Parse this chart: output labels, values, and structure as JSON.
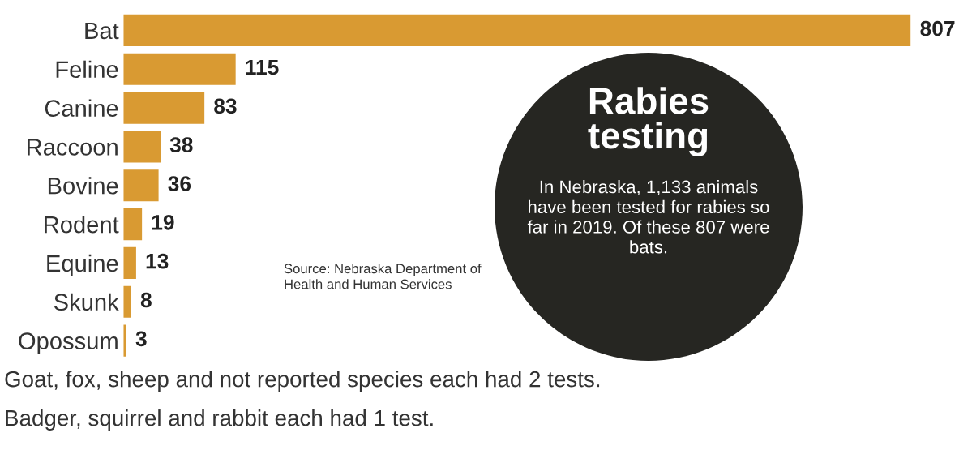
{
  "chart_data": {
    "type": "bar",
    "orientation": "horizontal",
    "title": "Rabies testing",
    "subtitle": "In Nebraska, 1,133 animals have been tested for rabies so far in 2019. Of these 807 were bats.",
    "categories": [
      "Bat",
      "Feline",
      "Canine",
      "Raccoon",
      "Bovine",
      "Rodent",
      "Equine",
      "Skunk",
      "Opossum"
    ],
    "values": [
      807,
      115,
      83,
      38,
      36,
      19,
      13,
      8,
      3
    ],
    "color": "#d99a32",
    "data_labels": true,
    "grid": false,
    "legend": false,
    "annotations": [
      "Source: Nebraska Department of Health and Human Services",
      "Goat, fox, sheep and not reported species each had 2 tests.",
      "Badger, squirrel and rabbit each had 1 test."
    ]
  }
}
